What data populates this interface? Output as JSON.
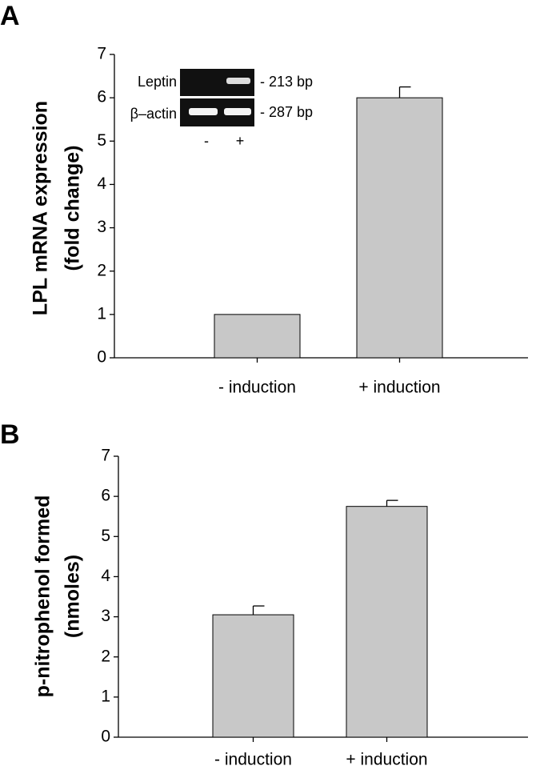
{
  "chart_data": [
    {
      "type": "bar",
      "panel_label": "A",
      "ylabel": [
        "LPL mRNA expression",
        "(fold change)"
      ],
      "categories": [
        "- induction",
        "+ induction"
      ],
      "values": [
        1,
        6
      ],
      "errors": [
        null,
        0.25
      ],
      "color": "#c8c8c8",
      "ylim": [
        0,
        7
      ],
      "yticks": [
        0,
        1,
        2,
        3,
        4,
        5,
        6,
        7
      ],
      "inset": {
        "rows": [
          "Leptin",
          "β–actin"
        ],
        "sizes": [
          "- 213 bp",
          "- 287 bp"
        ],
        "lanes": [
          "-",
          "+"
        ]
      }
    },
    {
      "type": "bar",
      "panel_label": "B",
      "ylabel": [
        "p-nitrophenol formed",
        "(nmoles)"
      ],
      "categories": [
        "- induction",
        "+ induction"
      ],
      "values": [
        3.05,
        5.75
      ],
      "errors": [
        0.22,
        0.15
      ],
      "color": "#c8c8c8",
      "ylim": [
        0,
        7
      ],
      "yticks": [
        0,
        1,
        2,
        3,
        4,
        5,
        6,
        7
      ]
    }
  ]
}
